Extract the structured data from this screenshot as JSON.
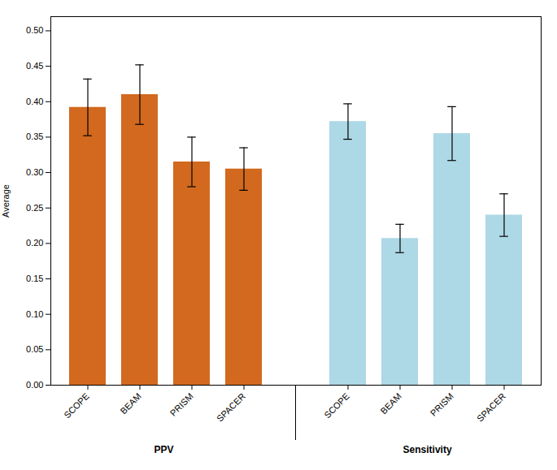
{
  "chart_data": {
    "type": "bar",
    "ylabel": "Average",
    "series": [
      {
        "name": "PPV",
        "color": "#D2691E",
        "categories": [
          "SCOPE",
          "BEAM",
          "PRISM",
          "SPACER"
        ],
        "values": [
          0.392,
          0.41,
          0.315,
          0.305
        ],
        "errors": [
          0.04,
          0.042,
          0.035,
          0.03
        ]
      },
      {
        "name": "Sensitivity",
        "color": "#ADD8E6",
        "categories": [
          "SCOPE",
          "BEAM",
          "PRISM",
          "SPACER"
        ],
        "values": [
          0.372,
          0.207,
          0.355,
          0.24
        ],
        "errors": [
          0.025,
          0.02,
          0.038,
          0.03
        ]
      }
    ],
    "ylim": [
      0,
      0.52
    ],
    "yticks": [
      {
        "value": 0,
        "label": "0.00"
      },
      {
        "value": 0.05,
        "label": "0.05"
      },
      {
        "value": 0.1,
        "label": "0.10"
      },
      {
        "value": 0.15,
        "label": "0.15"
      },
      {
        "value": 0.2,
        "label": "0.20"
      },
      {
        "value": 0.25,
        "label": "0.25"
      },
      {
        "value": 0.3,
        "label": "0.30"
      },
      {
        "value": 0.35,
        "label": "0.35"
      },
      {
        "value": 0.4,
        "label": "0.40"
      },
      {
        "value": 0.45,
        "label": "0.45"
      },
      {
        "value": 0.5,
        "label": "0.50"
      }
    ],
    "grid": false
  }
}
